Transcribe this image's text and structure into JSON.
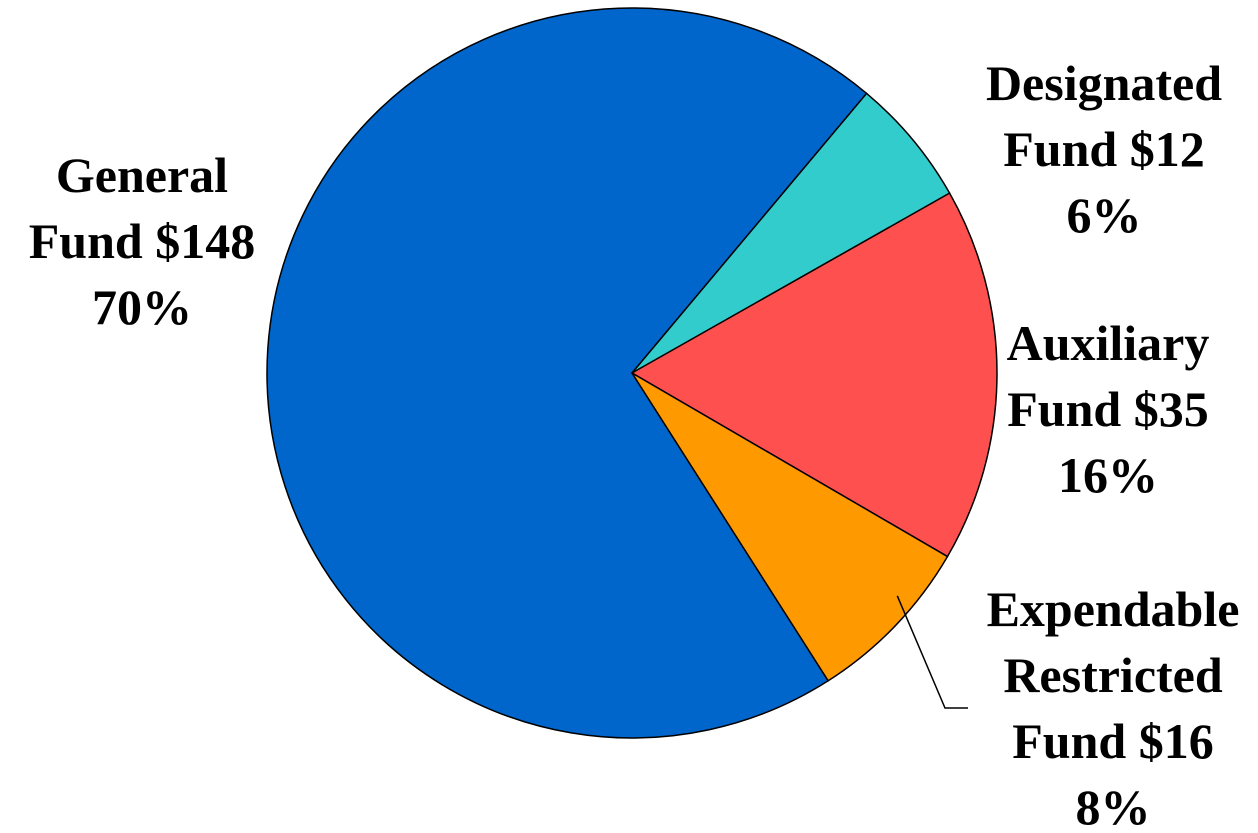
{
  "chart_data": {
    "type": "pie",
    "title": "",
    "slices": [
      {
        "name": "General Fund",
        "value": 148,
        "percent": 70,
        "color": "#0066CC",
        "label_lines": [
          "General",
          "Fund $148",
          "70%"
        ]
      },
      {
        "name": "Designated Fund",
        "value": 12,
        "percent": 6,
        "color": "#33CCCC",
        "label_lines": [
          "Designated",
          "Fund $12",
          "6%"
        ]
      },
      {
        "name": "Auxiliary Fund",
        "value": 35,
        "percent": 16,
        "color": "#FF5050",
        "label_lines": [
          "Auxiliary",
          "Fund $35",
          "16%"
        ]
      },
      {
        "name": "Expendable Restricted Fund",
        "value": 16,
        "percent": 8,
        "color": "#FF9900",
        "label_lines": [
          "Expendable",
          "Restricted",
          "Fund $16",
          "8%"
        ]
      }
    ],
    "legend": "none",
    "labels": "outside"
  }
}
